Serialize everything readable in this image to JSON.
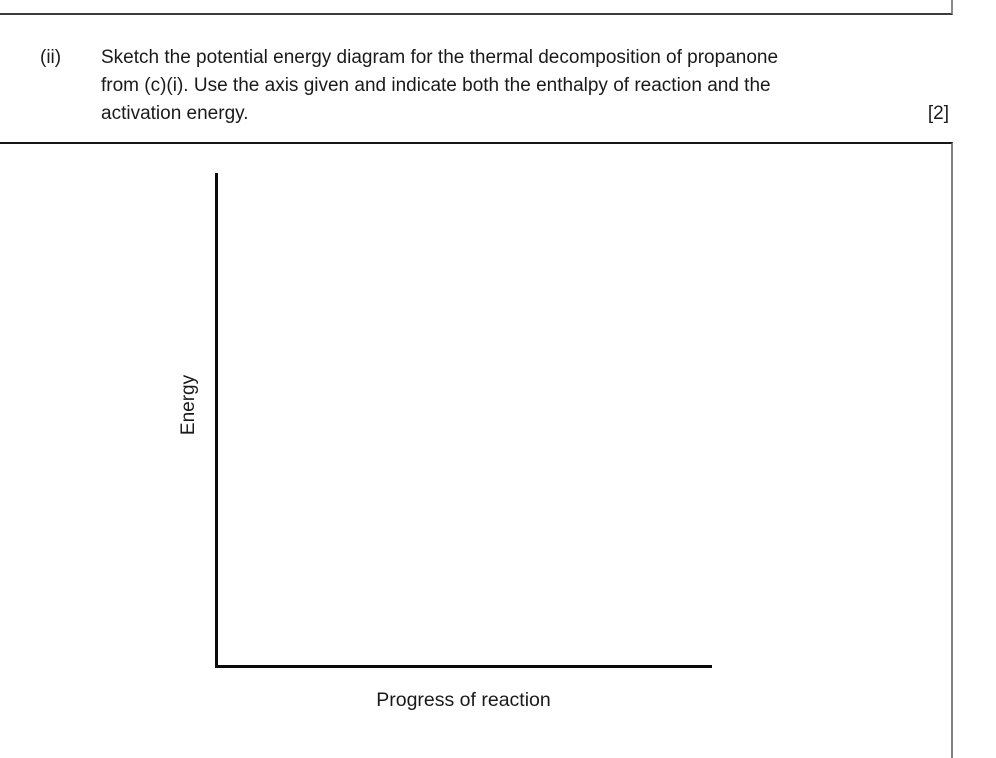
{
  "question": {
    "number": "(ii)",
    "lines": [
      "Sketch the potential energy diagram for the thermal decomposition of propanone",
      "from (c)(i). Use the axis given and indicate both the enthalpy of reaction and the",
      "activation energy."
    ],
    "marks": "[2]"
  },
  "diagram": {
    "y_axis_label": "Energy",
    "x_axis_label": "Progress of reaction"
  },
  "colors": {
    "background": "#ffffff",
    "text": "#1a1a1a",
    "axis": "#0a0a0a",
    "box_border_horizontal": "#2e2e2e",
    "box_border_vertical": "#7f7f7f"
  }
}
